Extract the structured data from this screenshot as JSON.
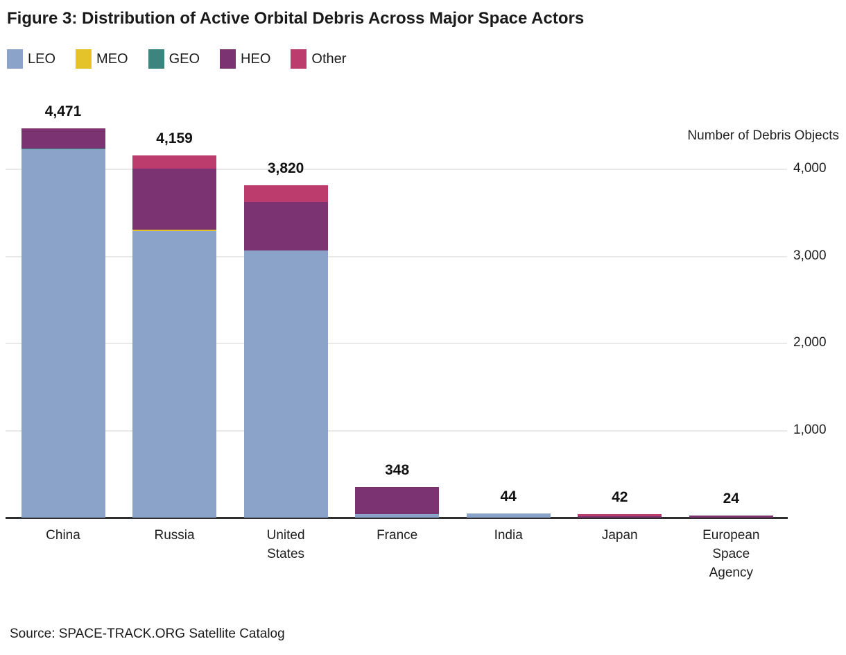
{
  "figure": {
    "title": "Figure 3: Distribution of Active Orbital Debris Across Major Space Actors",
    "source": "Source: SPACE-TRACK.ORG Satellite Catalog",
    "y_axis_title": "Number of Debris Objects"
  },
  "chart_data": {
    "type": "bar",
    "stacked": true,
    "title": "Figure 3: Distribution of Active Orbital Debris Across Major Space Actors",
    "xlabel": "",
    "ylabel": "Number of Debris Objects",
    "categories": [
      "China",
      "Russia",
      "United States",
      "France",
      "India",
      "Japan",
      "European Space Agency"
    ],
    "series": [
      {
        "name": "LEO",
        "color": "#8ba3c8",
        "values": [
          4232,
          3291,
          3071,
          40,
          44,
          0,
          0
        ]
      },
      {
        "name": "MEO",
        "color": "#e4c32a",
        "values": [
          0,
          16,
          0,
          0,
          0,
          0,
          0
        ]
      },
      {
        "name": "GEO",
        "color": "#3d837e",
        "values": [
          12,
          0,
          0,
          0,
          0,
          0,
          0
        ]
      },
      {
        "name": "HEO",
        "color": "#7c3371",
        "values": [
          227,
          702,
          558,
          308,
          0,
          16,
          24
        ]
      },
      {
        "name": "Other",
        "color": "#bd3c6e",
        "values": [
          0,
          150,
          191,
          0,
          0,
          26,
          0
        ]
      }
    ],
    "totals": [
      4471,
      4159,
      3820,
      348,
      44,
      42,
      24
    ],
    "total_labels": [
      "4,471",
      "4,159",
      "3,820",
      "348",
      "44",
      "42",
      "24"
    ],
    "yticks": [
      {
        "value": 1000,
        "label": "1,000"
      },
      {
        "value": 2000,
        "label": "2,000"
      },
      {
        "value": 3000,
        "label": "3,000"
      },
      {
        "value": 4000,
        "label": "4,000"
      }
    ],
    "ylim": [
      0,
      4700
    ],
    "grid": "horizontal",
    "legend_position": "top-left",
    "source": "Source: SPACE-TRACK.ORG Satellite Catalog"
  },
  "colors": {
    "grid": "#e9e9e9",
    "axis": "#2e2e2e",
    "text": "#1a1a1a"
  }
}
